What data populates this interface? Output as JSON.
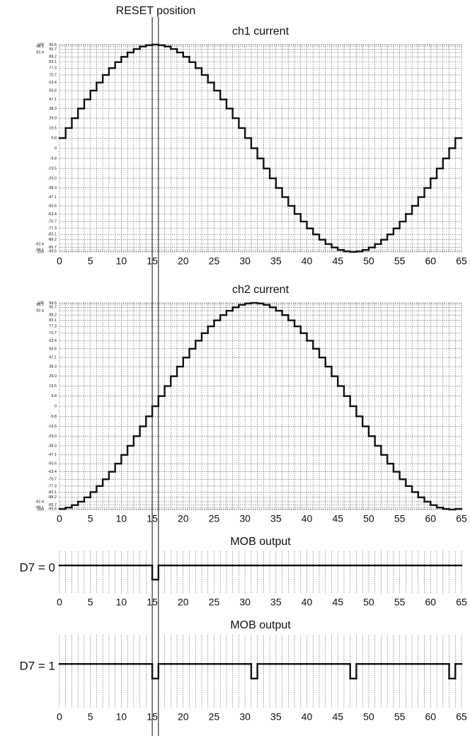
{
  "chart_data": [
    {
      "type": "step",
      "title": "ch1 current",
      "annotation": "RESET position",
      "color": "#111111",
      "grid": true,
      "x": [
        0,
        1,
        2,
        3,
        4,
        5,
        6,
        7,
        8,
        9,
        10,
        11,
        12,
        13,
        14,
        15,
        16,
        17,
        18,
        19,
        20,
        21,
        22,
        23,
        24,
        25,
        26,
        27,
        28,
        29,
        30,
        31,
        32,
        33,
        34,
        35,
        36,
        37,
        38,
        39,
        40,
        41,
        42,
        43,
        44,
        45,
        46,
        47,
        48,
        49,
        50,
        51,
        52,
        53,
        54,
        55,
        56,
        57,
        58,
        59,
        60,
        61,
        62,
        63,
        64
      ],
      "values": [
        9.8,
        19.5,
        29,
        38.3,
        47.1,
        55.6,
        63.4,
        70.7,
        77.3,
        83.1,
        88.2,
        92.4,
        95.7,
        98.1,
        99.5,
        100,
        99.5,
        98.1,
        95.7,
        92.4,
        88.2,
        83.1,
        77.3,
        70.7,
        63.4,
        55.6,
        47.1,
        38.3,
        29,
        19.5,
        9.8,
        0,
        -9.8,
        -19.5,
        -29,
        -38.3,
        -47.1,
        -55.6,
        -63.4,
        -70.7,
        -77.3,
        -83.1,
        -88.2,
        -92.4,
        -95.7,
        -98.1,
        -99.5,
        -100,
        -99.5,
        -98.1,
        -95.7,
        -92.4,
        -88.2,
        -83.1,
        -77.3,
        -70.7,
        -63.4,
        -55.6,
        -47.1,
        -38.3,
        -29,
        -19.5,
        -9.8,
        0,
        9.8
      ],
      "xlim": [
        0,
        65
      ],
      "xticks": [
        0,
        5,
        10,
        15,
        20,
        25,
        30,
        35,
        40,
        45,
        50,
        55,
        60,
        65
      ],
      "ylim": [
        -100,
        100
      ],
      "yticks": [
        100,
        99.5,
        98.1,
        95.7,
        92.4,
        88.2,
        83.1,
        77.3,
        70.7,
        63.4,
        55.6,
        47.1,
        38.3,
        {
          "value": 29,
          "label": "29.0"
        },
        19.5,
        9.8,
        0,
        -9.8,
        -19.5,
        {
          "value": -29,
          "label": "-29.0"
        },
        -38.3,
        -47.1,
        -55.6,
        -63.4,
        -70.7,
        -77.3,
        -83.1,
        -88.2,
        -92.4,
        -95.7,
        -98.1,
        -99.5,
        -100
      ]
    },
    {
      "type": "step",
      "title": "ch2 current",
      "color": "#111111",
      "grid": true,
      "x": [
        0,
        1,
        2,
        3,
        4,
        5,
        6,
        7,
        8,
        9,
        10,
        11,
        12,
        13,
        14,
        15,
        16,
        17,
        18,
        19,
        20,
        21,
        22,
        23,
        24,
        25,
        26,
        27,
        28,
        29,
        30,
        31,
        32,
        33,
        34,
        35,
        36,
        37,
        38,
        39,
        40,
        41,
        42,
        43,
        44,
        45,
        46,
        47,
        48,
        49,
        50,
        51,
        52,
        53,
        54,
        55,
        56,
        57,
        58,
        59,
        60,
        61,
        62,
        63,
        64
      ],
      "values": [
        -99.5,
        -98.1,
        -95.7,
        -92.4,
        -88.2,
        -83.1,
        -77.3,
        -70.7,
        -63.4,
        -55.6,
        -47.1,
        -38.3,
        -29,
        -19.5,
        -9.8,
        0,
        9.8,
        19.5,
        29,
        38.3,
        47.1,
        55.6,
        63.4,
        70.7,
        77.3,
        83.1,
        88.2,
        92.4,
        95.7,
        98.1,
        99.5,
        100,
        99.5,
        98.1,
        95.7,
        92.4,
        88.2,
        83.1,
        77.3,
        70.7,
        63.4,
        55.6,
        47.1,
        38.3,
        29,
        19.5,
        9.8,
        0,
        -9.8,
        -19.5,
        -29,
        -38.3,
        -47.1,
        -55.6,
        -63.4,
        -70.7,
        -77.3,
        -83.1,
        -88.2,
        -92.4,
        -95.7,
        -98.1,
        -99.5,
        -100,
        -99.5
      ],
      "xlim": [
        0,
        65
      ],
      "xticks": [
        0,
        5,
        10,
        15,
        20,
        25,
        30,
        35,
        40,
        45,
        50,
        55,
        60,
        65
      ],
      "ylim": [
        -100,
        100
      ],
      "yticks": [
        100,
        99.5,
        98.1,
        95.7,
        92.4,
        88.2,
        83.1,
        77.3,
        70.7,
        63.4,
        55.6,
        47.1,
        38.3,
        {
          "value": 29,
          "label": "29.0"
        },
        19.5,
        9.8,
        0,
        -9.8,
        -19.5,
        {
          "value": -29,
          "label": "-29.0"
        },
        -38.3,
        -47.1,
        -55.6,
        -63.4,
        -70.7,
        -77.3,
        -83.1,
        -88.2,
        -92.4,
        -95.7,
        -98.1,
        -99.5,
        -100
      ]
    },
    {
      "type": "step",
      "title": "MOB output",
      "ylabel": "D7 = 0",
      "color": "#111111",
      "grid": true,
      "x": [
        0,
        1,
        2,
        3,
        4,
        5,
        6,
        7,
        8,
        9,
        10,
        11,
        12,
        13,
        14,
        15,
        16,
        17,
        18,
        19,
        20,
        21,
        22,
        23,
        24,
        25,
        26,
        27,
        28,
        29,
        30,
        31,
        32,
        33,
        34,
        35,
        36,
        37,
        38,
        39,
        40,
        41,
        42,
        43,
        44,
        45,
        46,
        47,
        48,
        49,
        50,
        51,
        52,
        53,
        54,
        55,
        56,
        57,
        58,
        59,
        60,
        61,
        62,
        63,
        64
      ],
      "values": [
        1,
        1,
        1,
        1,
        1,
        1,
        1,
        1,
        1,
        1,
        1,
        1,
        1,
        1,
        1,
        0,
        1,
        1,
        1,
        1,
        1,
        1,
        1,
        1,
        1,
        1,
        1,
        1,
        1,
        1,
        1,
        1,
        1,
        1,
        1,
        1,
        1,
        1,
        1,
        1,
        1,
        1,
        1,
        1,
        1,
        1,
        1,
        1,
        1,
        1,
        1,
        1,
        1,
        1,
        1,
        1,
        1,
        1,
        1,
        1,
        1,
        1,
        1,
        1,
        1
      ],
      "xlim": [
        0,
        65
      ],
      "xticks": [
        0,
        5,
        10,
        15,
        20,
        25,
        30,
        35,
        40,
        45,
        50,
        55,
        60,
        65
      ],
      "ylim": [
        -1,
        2
      ]
    },
    {
      "type": "step",
      "title": "MOB output",
      "ylabel": "D7 = 1",
      "color": "#111111",
      "grid": true,
      "x": [
        0,
        1,
        2,
        3,
        4,
        5,
        6,
        7,
        8,
        9,
        10,
        11,
        12,
        13,
        14,
        15,
        16,
        17,
        18,
        19,
        20,
        21,
        22,
        23,
        24,
        25,
        26,
        27,
        28,
        29,
        30,
        31,
        32,
        33,
        34,
        35,
        36,
        37,
        38,
        39,
        40,
        41,
        42,
        43,
        44,
        45,
        46,
        47,
        48,
        49,
        50,
        51,
        52,
        53,
        54,
        55,
        56,
        57,
        58,
        59,
        60,
        61,
        62,
        63,
        64
      ],
      "values": [
        1,
        1,
        1,
        1,
        1,
        1,
        1,
        1,
        1,
        1,
        1,
        1,
        1,
        1,
        1,
        0,
        1,
        1,
        1,
        1,
        1,
        1,
        1,
        1,
        1,
        1,
        1,
        1,
        1,
        1,
        1,
        0,
        1,
        1,
        1,
        1,
        1,
        1,
        1,
        1,
        1,
        1,
        1,
        1,
        1,
        1,
        1,
        0,
        1,
        1,
        1,
        1,
        1,
        1,
        1,
        1,
        1,
        1,
        1,
        1,
        1,
        1,
        1,
        0,
        1
      ],
      "xlim": [
        0,
        65
      ],
      "xticks": [
        0,
        5,
        10,
        15,
        20,
        25,
        30,
        35,
        40,
        45,
        50,
        55,
        60,
        65
      ],
      "ylim": [
        -2,
        3
      ]
    }
  ]
}
